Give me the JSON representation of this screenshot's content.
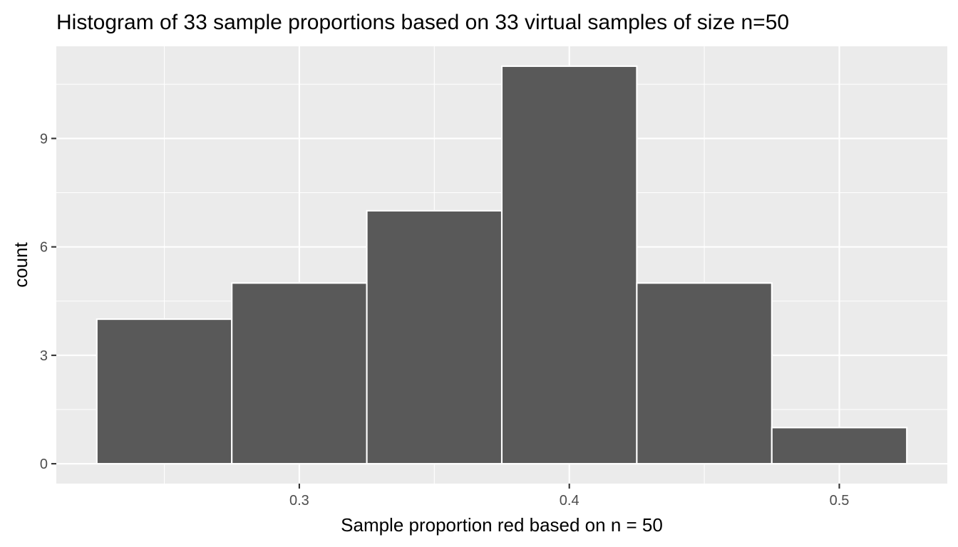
{
  "chart_data": {
    "type": "bar",
    "title": "Histogram of 33 sample proportions based on 33 virtual samples of size n=50",
    "xlabel": "Sample proportion red based on n = 50",
    "ylabel": "count",
    "bins": [
      {
        "x_start": 0.225,
        "x_end": 0.275,
        "count": 4
      },
      {
        "x_start": 0.275,
        "x_end": 0.325,
        "count": 5
      },
      {
        "x_start": 0.325,
        "x_end": 0.375,
        "count": 7
      },
      {
        "x_start": 0.375,
        "x_end": 0.425,
        "count": 11
      },
      {
        "x_start": 0.425,
        "x_end": 0.475,
        "count": 5
      },
      {
        "x_start": 0.475,
        "x_end": 0.525,
        "count": 1
      }
    ],
    "xlim": [
      0.21,
      0.54
    ],
    "ylim": [
      -0.55,
      11.55
    ],
    "x_major_ticks": [
      0.3,
      0.4,
      0.5
    ],
    "x_tick_labels": [
      "0.3",
      "0.4",
      "0.5"
    ],
    "x_minor_ticks": [
      0.25,
      0.35,
      0.45
    ],
    "y_major_ticks": [
      0,
      3,
      6,
      9
    ],
    "y_tick_labels": [
      "0",
      "3",
      "6",
      "9"
    ],
    "y_minor_ticks": [
      1.5,
      4.5,
      7.5,
      10.5
    ],
    "grid": true,
    "colors": {
      "panel_background": "#ebebeb",
      "bar_fill": "#595959",
      "bar_outline": "#ffffff",
      "gridline": "#ffffff",
      "tick_label": "#4d4d4d"
    }
  }
}
